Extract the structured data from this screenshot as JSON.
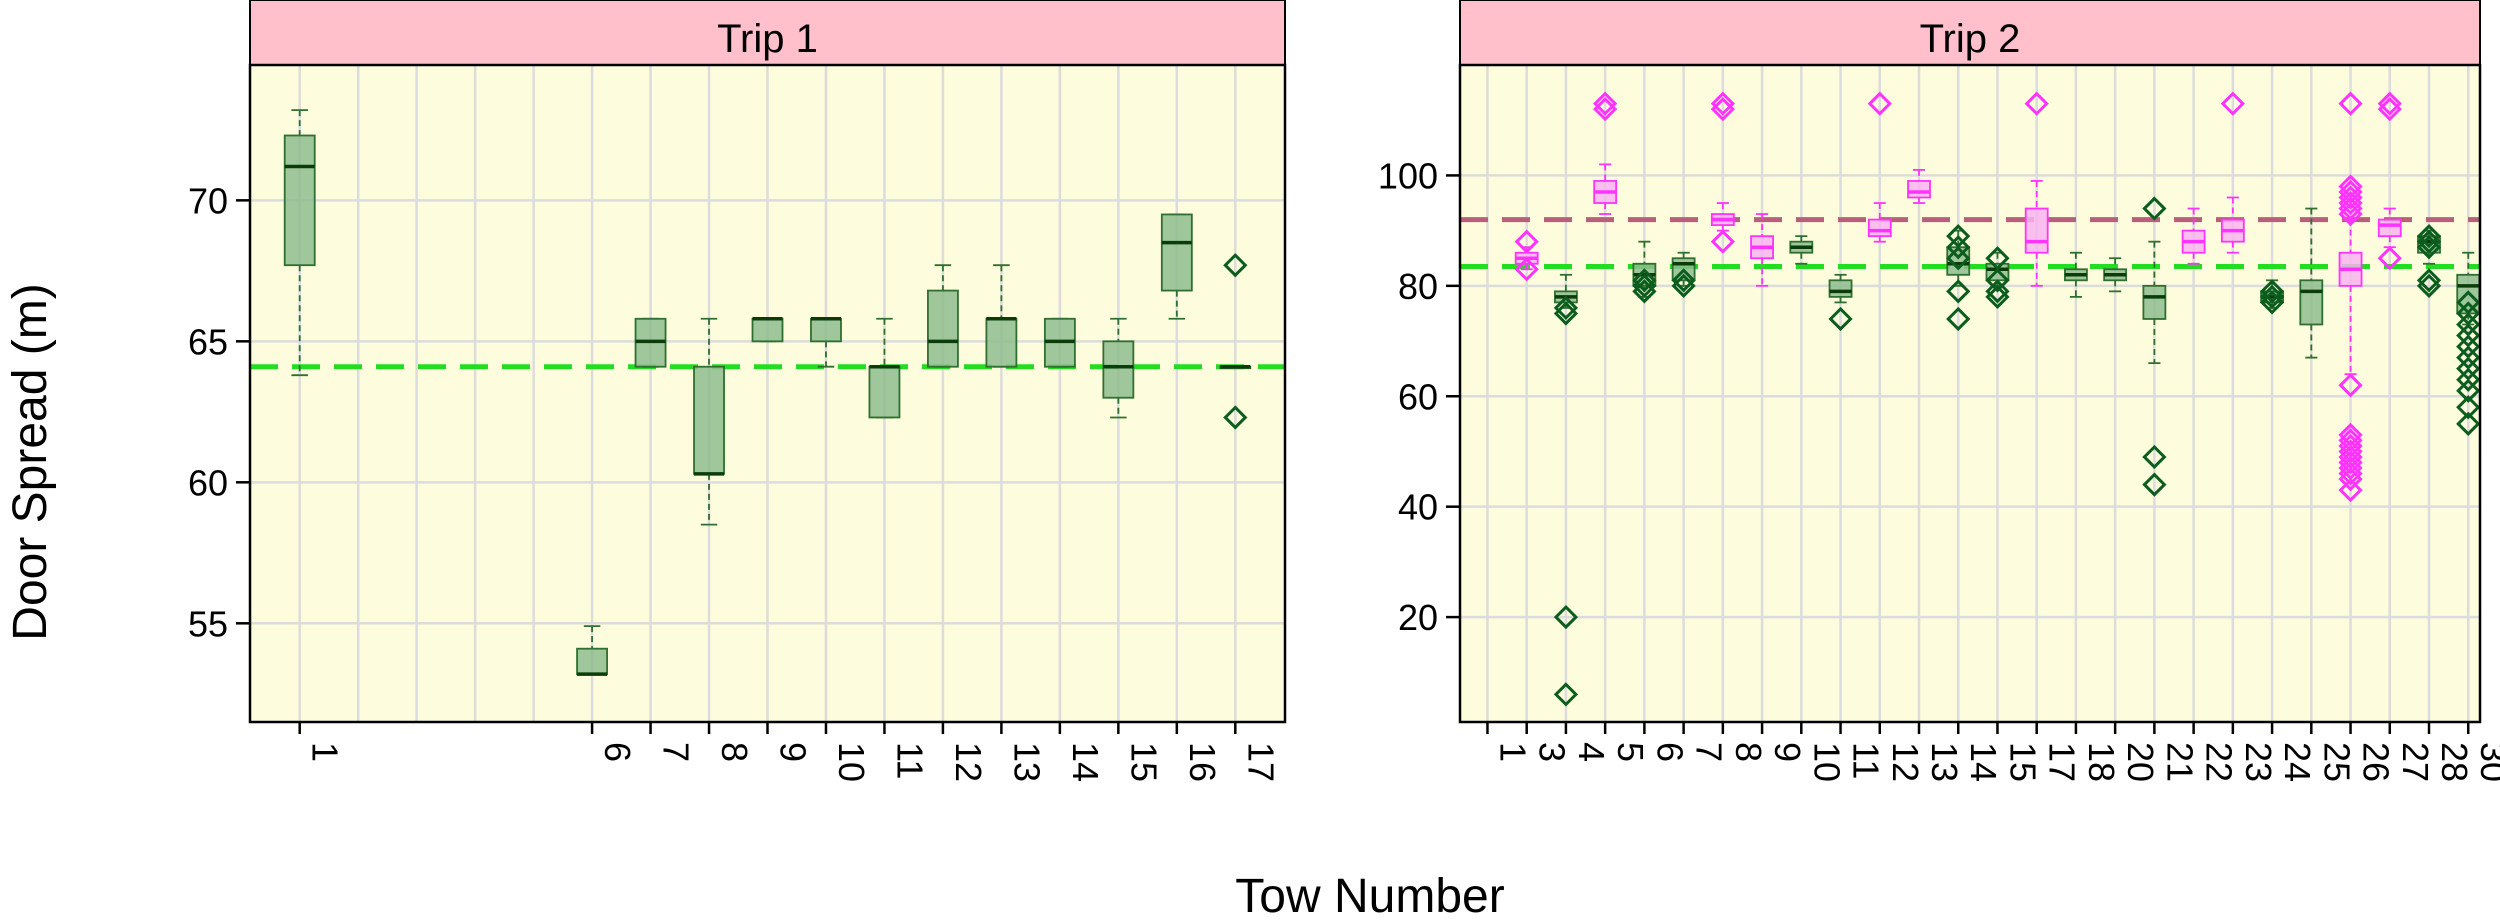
{
  "colors": {
    "strip": "#ffc0cb",
    "panel_bg": "#fdfcdc",
    "grid": "#dcdcdc",
    "box_fill": "#8fbc8f",
    "box_line": "#2f6f2f",
    "median_green": "#0a3d0a",
    "outlier_green": "#0b5d1e",
    "magenta": "#ff33ff",
    "ref_green": "#22dd22",
    "ref_mauve": "#b8607a"
  },
  "chart_data": [
    {
      "type": "box",
      "strip_label": "Trip 1",
      "xlabel": "Tow Number",
      "ylabel": "Door Spread (m)",
      "ylim": [
        51.5,
        74.8
      ],
      "yticks": [
        55,
        60,
        65,
        70
      ],
      "categories": [
        "1",
        "6",
        "7",
        "8",
        "9",
        "10",
        "11",
        "12",
        "13",
        "14",
        "15",
        "16",
        "17"
      ],
      "category_positions": [
        1,
        6,
        7,
        8,
        9,
        10,
        11,
        12,
        13,
        14,
        15,
        16,
        17
      ],
      "xlim": [
        0.15,
        17.85
      ],
      "grid_x": [
        1,
        2,
        3,
        4,
        5,
        6,
        7,
        8,
        9,
        10,
        11,
        12,
        13,
        14,
        15,
        16,
        17
      ],
      "reference_lines": [
        {
          "y": 64.1,
          "color": "ref_green"
        }
      ],
      "series": [
        {
          "name": "",
          "color": "green",
          "boxes": [
            {
              "x": 1,
              "whislo": 63.8,
              "q1": 67.7,
              "med": 71.2,
              "q3": 72.3,
              "whishi": 73.2,
              "fliers": []
            },
            {
              "x": 6,
              "whislo": 53.2,
              "q1": 53.2,
              "med": 53.2,
              "q3": 54.1,
              "whishi": 54.9,
              "fliers": []
            },
            {
              "x": 7,
              "whislo": 64.1,
              "q1": 64.1,
              "med": 65.0,
              "q3": 65.8,
              "whishi": 65.8,
              "fliers": []
            },
            {
              "x": 8,
              "whislo": 58.5,
              "q1": 60.3,
              "med": 60.3,
              "q3": 64.1,
              "whishi": 65.8,
              "fliers": []
            },
            {
              "x": 9,
              "whislo": 65.0,
              "q1": 65.0,
              "med": 65.8,
              "q3": 65.8,
              "whishi": 65.8,
              "fliers": []
            },
            {
              "x": 10,
              "whislo": 64.1,
              "q1": 65.0,
              "med": 65.8,
              "q3": 65.8,
              "whishi": 65.8,
              "fliers": []
            },
            {
              "x": 11,
              "whislo": 62.3,
              "q1": 62.3,
              "med": 64.1,
              "q3": 64.1,
              "whishi": 65.8,
              "fliers": []
            },
            {
              "x": 12,
              "whislo": 64.1,
              "q1": 64.1,
              "med": 65.0,
              "q3": 66.8,
              "whishi": 67.7,
              "fliers": []
            },
            {
              "x": 13,
              "whislo": 64.1,
              "q1": 64.1,
              "med": 65.8,
              "q3": 65.8,
              "whishi": 67.7,
              "fliers": []
            },
            {
              "x": 14,
              "whislo": 64.1,
              "q1": 64.1,
              "med": 65.0,
              "q3": 65.8,
              "whishi": 65.8,
              "fliers": []
            },
            {
              "x": 15,
              "whislo": 62.3,
              "q1": 63.0,
              "med": 64.1,
              "q3": 65.0,
              "whishi": 65.8,
              "fliers": []
            },
            {
              "x": 16,
              "whislo": 65.8,
              "q1": 66.8,
              "med": 68.5,
              "q3": 69.5,
              "whishi": 69.5,
              "fliers": []
            },
            {
              "x": 17,
              "whislo": 64.1,
              "q1": 64.1,
              "med": 64.1,
              "q3": 64.1,
              "whishi": 64.1,
              "fliers": [
                67.7,
                62.3
              ]
            }
          ]
        }
      ]
    },
    {
      "type": "box",
      "strip_label": "Trip 2",
      "xlabel": "Tow Number",
      "ylabel": "Door Spread (m)",
      "ylim": [
        1,
        120
      ],
      "yticks": [
        20,
        40,
        60,
        80,
        100
      ],
      "categories": [
        "1",
        "3",
        "4",
        "5",
        "6",
        "7",
        "8",
        "9",
        "10",
        "11",
        "12",
        "13",
        "14",
        "15",
        "17",
        "18",
        "20",
        "21",
        "22",
        "23",
        "24",
        "25",
        "26",
        "27",
        "28",
        "30"
      ],
      "category_positions": [
        1,
        2,
        3,
        4,
        5,
        6,
        7,
        8,
        9,
        10,
        11,
        12,
        13,
        14,
        15,
        16,
        17,
        18,
        19,
        20,
        21,
        22,
        23,
        24,
        25,
        26
      ],
      "xlim": [
        0.3,
        26.3
      ],
      "grid_x": [
        1,
        2,
        3,
        4,
        5,
        6,
        7,
        8,
        9,
        10,
        11,
        12,
        13,
        14,
        15,
        16,
        17,
        18,
        19,
        20,
        21,
        22,
        23,
        24,
        25,
        26
      ],
      "reference_lines": [
        {
          "y": 92,
          "color": "ref_mauve"
        },
        {
          "y": 83.5,
          "color": "ref_green"
        }
      ],
      "series": [
        {
          "name": "",
          "color": "green",
          "boxes": [
            {
              "x": 3,
              "whislo": 76,
              "q1": 77,
              "med": 78,
              "q3": 79,
              "whishi": 82,
              "fliers": [
                75,
                76,
                20,
                6
              ]
            },
            {
              "x": 5,
              "whislo": 78,
              "q1": 80,
              "med": 82,
              "q3": 84,
              "whishi": 88,
              "fliers": [
                79,
                80,
                81
              ]
            },
            {
              "x": 6,
              "whislo": 80,
              "q1": 81,
              "med": 84,
              "q3": 85,
              "whishi": 86,
              "fliers": [
                80,
                81
              ]
            },
            {
              "x": 9,
              "whislo": 84,
              "q1": 86,
              "med": 87,
              "q3": 88,
              "whishi": 89,
              "fliers": []
            },
            {
              "x": 10,
              "whislo": 77,
              "q1": 78,
              "med": 79,
              "q3": 81,
              "whishi": 82,
              "fliers": [
                74
              ]
            },
            {
              "x": 13,
              "whislo": 80,
              "q1": 82,
              "med": 84,
              "q3": 87,
              "whishi": 90,
              "fliers": [
                89,
                87,
                85,
                79,
                74
              ]
            },
            {
              "x": 14,
              "whislo": 80,
              "q1": 81,
              "med": 83,
              "q3": 84,
              "whishi": 86,
              "fliers": [
                85,
                81,
                79,
                78
              ]
            },
            {
              "x": 16,
              "whislo": 78,
              "q1": 81,
              "med": 82,
              "q3": 83,
              "whishi": 86,
              "fliers": []
            },
            {
              "x": 17,
              "whislo": 79,
              "q1": 81,
              "med": 82,
              "q3": 83,
              "whishi": 85,
              "fliers": []
            },
            {
              "x": 18,
              "whislo": 66,
              "q1": 74,
              "med": 78,
              "q3": 80,
              "whishi": 88,
              "fliers": [
                94,
                49,
                44
              ]
            },
            {
              "x": 21,
              "whislo": 76,
              "q1": 77,
              "med": 78,
              "q3": 79,
              "whishi": 81,
              "fliers": [
                77,
                78,
                79
              ]
            },
            {
              "x": 22,
              "whislo": 67,
              "q1": 73,
              "med": 79,
              "q3": 81,
              "whishi": 94,
              "fliers": []
            },
            {
              "x": 25,
              "whislo": 84,
              "q1": 86,
              "med": 88,
              "q3": 89,
              "whishi": 90,
              "fliers": [
                80,
                81,
                87,
                88,
                89
              ]
            },
            {
              "x": 26,
              "whislo": 73,
              "q1": 75,
              "med": 80,
              "q3": 82,
              "whishi": 86,
              "fliers": [
                77,
                75,
                73,
                71,
                69,
                67,
                65,
                63,
                61,
                58,
                55
              ]
            }
          ]
        },
        {
          "name": "",
          "color": "magenta",
          "boxes": [
            {
              "x": 2,
              "whislo": 83,
              "q1": 84,
              "med": 85,
              "q3": 86,
              "whishi": 87,
              "fliers": [
                88,
                83
              ]
            },
            {
              "x": 4,
              "whislo": 93,
              "q1": 95,
              "med": 97,
              "q3": 99,
              "whishi": 102,
              "fliers": [
                112,
                113
              ]
            },
            {
              "x": 7,
              "whislo": 90,
              "q1": 91,
              "med": 92,
              "q3": 93,
              "whishi": 95,
              "fliers": [
                112,
                113,
                88
              ]
            },
            {
              "x": 8,
              "whislo": 80,
              "q1": 85,
              "med": 87,
              "q3": 89,
              "whishi": 93,
              "fliers": []
            },
            {
              "x": 11,
              "whislo": 88,
              "q1": 89,
              "med": 90,
              "q3": 92,
              "whishi": 95,
              "fliers": [
                113
              ]
            },
            {
              "x": 12,
              "whislo": 95,
              "q1": 96,
              "med": 97,
              "q3": 99,
              "whishi": 101,
              "fliers": []
            },
            {
              "x": 15,
              "whislo": 80,
              "q1": 86,
              "med": 88,
              "q3": 94,
              "whishi": 99,
              "fliers": [
                113
              ]
            },
            {
              "x": 19,
              "whislo": 84,
              "q1": 86,
              "med": 88,
              "q3": 90,
              "whishi": 94,
              "fliers": []
            },
            {
              "x": 20,
              "whislo": 86,
              "q1": 88,
              "med": 90,
              "q3": 92,
              "whishi": 96,
              "fliers": [
                113
              ]
            },
            {
              "x": 23,
              "whislo": 64,
              "q1": 80,
              "med": 83,
              "q3": 86,
              "whishi": 92,
              "fliers": [
                113,
                98,
                97,
                96,
                95,
                94,
                93,
                62,
                53,
                52,
                51,
                50,
                49,
                48,
                47,
                46,
                45,
                43
              ]
            },
            {
              "x": 24,
              "whislo": 87,
              "q1": 89,
              "med": 91,
              "q3": 92,
              "whishi": 94,
              "fliers": [
                112,
                113,
                85
              ]
            }
          ]
        }
      ]
    }
  ]
}
